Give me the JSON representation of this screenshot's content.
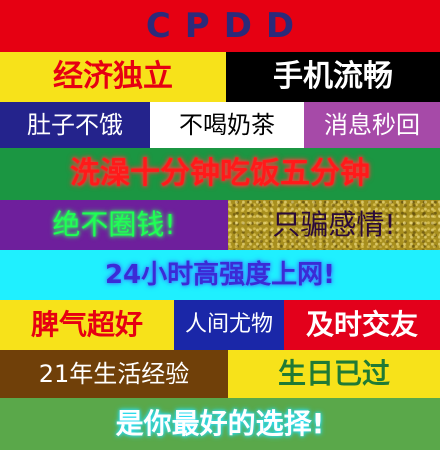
{
  "header": {
    "title": "CPDD"
  },
  "rows": {
    "r1": {
      "left": "经济独立",
      "right": "手机流畅"
    },
    "r2": {
      "a": "肚子不饿",
      "b": "不喝奶茶",
      "c": "消息秒回"
    },
    "r3": {
      "text": "洗澡十分钟吃饭五分钟"
    },
    "r4": {
      "left": "绝不圈钱!",
      "right": "只骗感情!"
    },
    "r5": {
      "text": "24小时高强度上网!"
    },
    "r6": {
      "a": "脾气超好",
      "b": "人间尤物",
      "c": "及时交友"
    },
    "r7": {
      "left": "21年生活经验",
      "right": "生日已过"
    },
    "r8": {
      "text": "是你最好的选择!"
    }
  },
  "colors": {
    "red": "#e60012",
    "navy": "#2b2a7a",
    "yellow": "#f7e21a",
    "black": "#000000",
    "indigo": "#24238c",
    "white": "#ffffff",
    "violet": "#a64aa8",
    "green": "#1b9642",
    "purple": "#6e1f9c",
    "gold": "#a88f1e",
    "cyan": "#1ff0ff",
    "blue": "#1a27a8",
    "deepred": "#e3001b",
    "brown": "#704009",
    "lightgreen": "#5aa84a"
  }
}
